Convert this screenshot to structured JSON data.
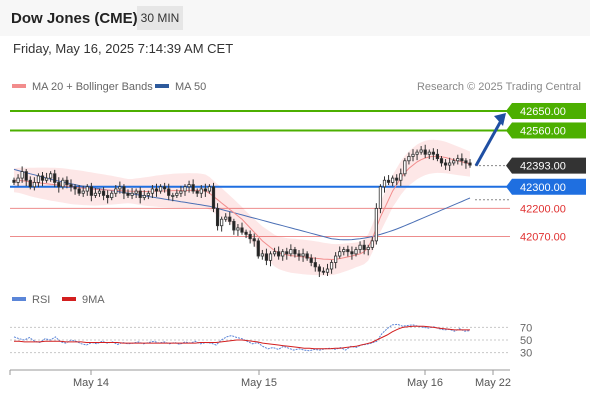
{
  "header": {
    "title": "Dow Jones (CME)",
    "interval": "30 MIN",
    "datetime": "Friday, May 16, 2025 7:14:39 AM CET"
  },
  "legend": {
    "items": [
      {
        "label": "MA 20 + Bollinger Bands",
        "color": "#f28c8c"
      },
      {
        "label": "MA 50",
        "color": "#2e5a9c"
      }
    ],
    "credit": "Research © 2025 Trading Central"
  },
  "colors": {
    "green": "#4caf00",
    "blue": "#1f6fe0",
    "red": "#e03030",
    "candle_up": "#ffffff",
    "candle_down": "#222222",
    "band_fill": "#fde4e4",
    "ma20": "#f28c8c",
    "ma50": "#4a6fb5",
    "rsi": "#5b86d8",
    "rsi9": "#d31f1f",
    "current": "#333333",
    "arrow": "#1f4fa3"
  },
  "chart_data": [
    {
      "type": "candlestick",
      "title": "Dow Jones (CME)",
      "xlabel": "",
      "ylabel": "",
      "x_ticks": [
        "May 14",
        "May 15",
        "May 16",
        "May 22"
      ],
      "ylim": [
        41860,
        42710
      ],
      "grid": false,
      "legend_placement": "top-left",
      "levels": [
        {
          "value": 42650.0,
          "label": "42650.00",
          "kind": "resistance"
        },
        {
          "value": 42560.0,
          "label": "42560.00",
          "kind": "resistance"
        },
        {
          "value": 42300.0,
          "label": "42300.00",
          "kind": "pivot"
        },
        {
          "value": 42200.0,
          "label": "42200.00",
          "kind": "support"
        },
        {
          "value": 42070.0,
          "label": "42070.00",
          "kind": "support"
        }
      ],
      "current_price": {
        "value": 42393.0,
        "label": "42393.00"
      },
      "close_series": [
        42320,
        42340,
        42370,
        42330,
        42300,
        42320,
        42350,
        42330,
        42340,
        42360,
        42320,
        42300,
        42330,
        42310,
        42300,
        42290,
        42270,
        42280,
        42300,
        42260,
        42270,
        42280,
        42260,
        42250,
        42270,
        42290,
        42300,
        42270,
        42260,
        42270,
        42280,
        42250,
        42260,
        42270,
        42290,
        42280,
        42300,
        42290,
        42260,
        42260,
        42270,
        42280,
        42300,
        42310,
        42280,
        42270,
        42290,
        42280,
        42300,
        42200,
        42120,
        42150,
        42160,
        42140,
        42100,
        42110,
        42090,
        42080,
        42060,
        42050,
        41980,
        41990,
        41960,
        41990,
        42000,
        41980,
        42000,
        41990,
        42010,
        41990,
        41980,
        41990,
        41970,
        41950,
        41930,
        41910,
        41905,
        41920,
        41950,
        41980,
        42000,
        42010,
        42000,
        41990,
        42010,
        42030,
        42010,
        42020,
        42050,
        42200,
        42300,
        42330,
        42320,
        42340,
        42330,
        42360,
        42420,
        42440,
        42450,
        42460,
        42470,
        42450,
        42460,
        42450,
        42430,
        42410,
        42400,
        42410,
        42420,
        42430,
        42420,
        42410,
        42400
      ],
      "ma20_series": [
        42330,
        42330,
        42328,
        42325,
        42322,
        42320,
        42318,
        42316,
        42314,
        42312,
        42310,
        42308,
        42306,
        42303,
        42300,
        42298,
        42296,
        42294,
        42292,
        42290,
        42288,
        42287,
        42286,
        42285,
        42284,
        42283,
        42282,
        42281,
        42280,
        42279,
        42279,
        42278,
        42278,
        42278,
        42279,
        42280,
        42280,
        42281,
        42281,
        42282,
        42282,
        42282,
        42282,
        42283,
        42283,
        42283,
        42282,
        42280,
        42270,
        42255,
        42240,
        42225,
        42210,
        42195,
        42180,
        42165,
        42150,
        42130,
        42110,
        42090,
        42070,
        42050,
        42035,
        42020,
        42005,
        41995,
        41990,
        41985,
        41982,
        41980,
        41978,
        41976,
        41974,
        41972,
        41970,
        41968,
        41966,
        41965,
        41964,
        41965,
        41968,
        41972,
        41976,
        41980,
        41985,
        41990,
        42000,
        42020,
        42060,
        42110,
        42160,
        42200,
        42240,
        42280,
        42310,
        42340,
        42365,
        42385,
        42400,
        42415,
        42425,
        42433,
        42438,
        42440,
        42440,
        42438,
        42435,
        42430,
        42425,
        42420,
        42415,
        42410,
        42405
      ],
      "ma50_series": [
        42380,
        42375,
        42370,
        42365,
        42360,
        42355,
        42350,
        42345,
        42340,
        42335,
        42330,
        42326,
        42322,
        42318,
        42314,
        42310,
        42306,
        42303,
        42300,
        42297,
        42294,
        42291,
        42288,
        42285,
        42282,
        42279,
        42276,
        42273,
        42270,
        42267,
        42264,
        42261,
        42258,
        42255,
        42252,
        42249,
        42246,
        42243,
        42240,
        42237,
        42234,
        42231,
        42228,
        42225,
        42222,
        42219,
        42216,
        42213,
        42210,
        42205,
        42200,
        42195,
        42190,
        42185,
        42180,
        42175,
        42170,
        42165,
        42160,
        42155,
        42150,
        42145,
        42140,
        42135,
        42130,
        42125,
        42120,
        42115,
        42110,
        42105,
        42100,
        42095,
        42090,
        42085,
        42080,
        42075,
        42070,
        42065,
        42060,
        42058,
        42056,
        42055,
        42055,
        42056,
        42058,
        42060,
        42063,
        42066,
        42070,
        42075,
        42080,
        42086,
        42092,
        42098,
        42105,
        42112,
        42120,
        42128,
        42136,
        42144,
        42152,
        42160,
        42168,
        42176,
        42184,
        42192,
        42200,
        42208,
        42216,
        42224,
        42232,
        42240,
        42248
      ],
      "projection": {
        "from": 42393.0,
        "to": 42650.0,
        "label": "target"
      }
    },
    {
      "type": "line",
      "title": "",
      "series": [
        {
          "name": "RSI",
          "color": "#5b86d8"
        },
        {
          "name": "9MA",
          "color": "#d31f1f"
        }
      ],
      "ylim": [
        15,
        85
      ],
      "y_ticks": [
        70,
        50,
        30
      ],
      "rsi_series": [
        55,
        52,
        50,
        54,
        48,
        46,
        52,
        50,
        55,
        47,
        45,
        50,
        48,
        44,
        42,
        46,
        44,
        48,
        45,
        47,
        43,
        46,
        44,
        45,
        47,
        44,
        46,
        48,
        45,
        47,
        44,
        46,
        43,
        47,
        45,
        48,
        44,
        46,
        45,
        42,
        50,
        55,
        57,
        54,
        52,
        48,
        44,
        46,
        40,
        36,
        38,
        35,
        40,
        37,
        34,
        36,
        34,
        33,
        35,
        34,
        36,
        37,
        35,
        38,
        34,
        40,
        38,
        42,
        43,
        45,
        48,
        60,
        68,
        74,
        75,
        72,
        73,
        74,
        72,
        70,
        69,
        71,
        68,
        66,
        67,
        64,
        68,
        64,
        65
      ],
      "ma9_series": [
        48,
        48,
        47,
        47,
        47,
        47,
        48,
        48,
        48,
        48,
        47,
        47,
        47,
        47,
        46,
        46,
        46,
        46,
        46,
        46,
        46,
        45,
        45,
        45,
        45,
        45,
        45,
        45,
        45,
        45,
        45,
        45,
        45,
        45,
        45,
        45,
        46,
        46,
        46,
        46,
        47,
        48,
        49,
        50,
        50,
        49,
        48,
        47,
        45,
        44,
        43,
        42,
        41,
        40,
        39,
        38,
        37,
        37,
        36,
        36,
        36,
        36,
        37,
        37,
        38,
        39,
        40,
        42,
        44,
        46,
        50,
        54,
        58,
        63,
        67,
        70,
        71,
        72,
        72,
        72,
        71,
        70,
        69,
        68,
        67,
        66,
        66,
        66,
        66
      ]
    }
  ]
}
